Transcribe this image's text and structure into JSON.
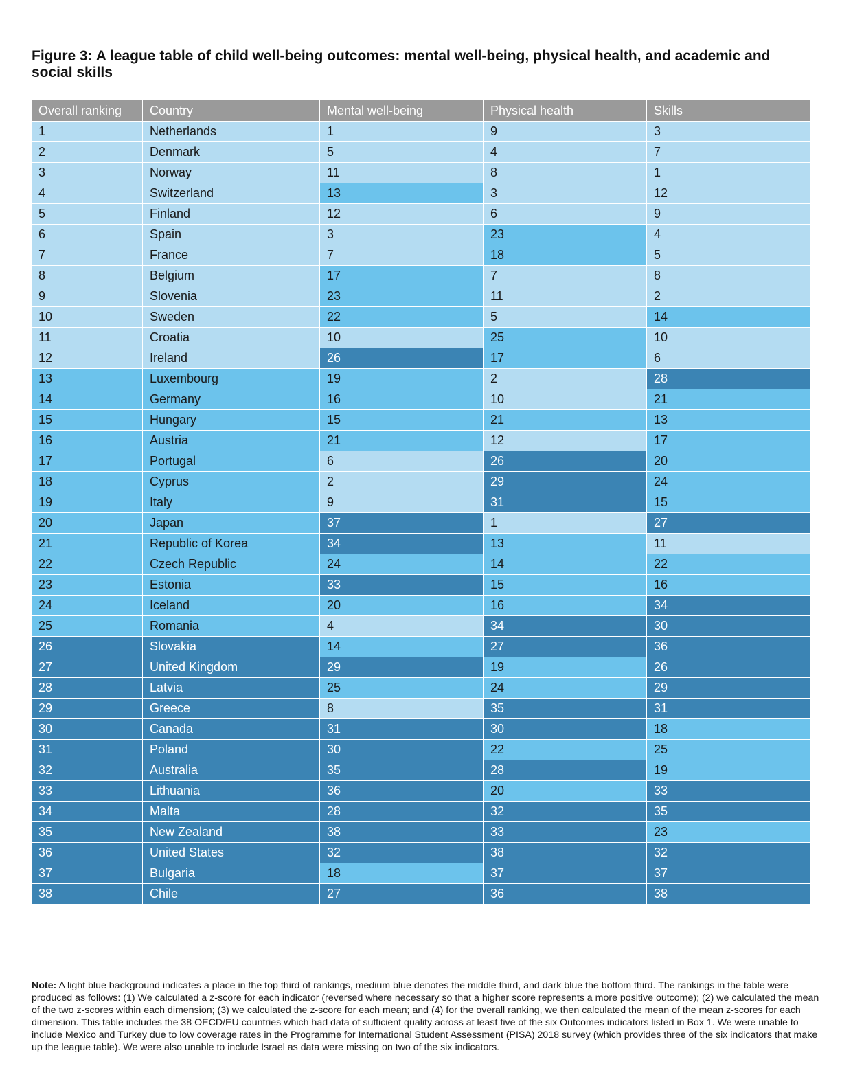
{
  "title": "Figure 3: A league table of child well-being outcomes: mental well-being, physical health, and academic and social skills",
  "columns": [
    "Overall ranking",
    "Country",
    "Mental well-being",
    "Physical health",
    "Skills"
  ],
  "rows": [
    [
      "1",
      "Netherlands",
      "1",
      "9",
      "3"
    ],
    [
      "2",
      "Denmark",
      "5",
      "4",
      "7"
    ],
    [
      "3",
      "Norway",
      "11",
      "8",
      "1"
    ],
    [
      "4",
      "Switzerland",
      "13",
      "3",
      "12"
    ],
    [
      "5",
      "Finland",
      "12",
      "6",
      "9"
    ],
    [
      "6",
      "Spain",
      "3",
      "23",
      "4"
    ],
    [
      "7",
      "France",
      "7",
      "18",
      "5"
    ],
    [
      "8",
      "Belgium",
      "17",
      "7",
      "8"
    ],
    [
      "9",
      "Slovenia",
      "23",
      "11",
      "2"
    ],
    [
      "10",
      "Sweden",
      "22",
      "5",
      "14"
    ],
    [
      "11",
      "Croatia",
      "10",
      "25",
      "10"
    ],
    [
      "12",
      "Ireland",
      "26",
      "17",
      "6"
    ],
    [
      "13",
      "Luxembourg",
      "19",
      "2",
      "28"
    ],
    [
      "14",
      "Germany",
      "16",
      "10",
      "21"
    ],
    [
      "15",
      "Hungary",
      "15",
      "21",
      "13"
    ],
    [
      "16",
      "Austria",
      "21",
      "12",
      "17"
    ],
    [
      "17",
      "Portugal",
      "6",
      "26",
      "20"
    ],
    [
      "18",
      "Cyprus",
      "2",
      "29",
      "24"
    ],
    [
      "19",
      "Italy",
      "9",
      "31",
      "15"
    ],
    [
      "20",
      "Japan",
      "37",
      "1",
      "27"
    ],
    [
      "21",
      "Republic of Korea",
      "34",
      "13",
      "11"
    ],
    [
      "22",
      "Czech Republic",
      "24",
      "14",
      "22"
    ],
    [
      "23",
      "Estonia",
      "33",
      "15",
      "16"
    ],
    [
      "24",
      "Iceland",
      "20",
      "16",
      "34"
    ],
    [
      "25",
      "Romania",
      "4",
      "34",
      "30"
    ],
    [
      "26",
      "Slovakia",
      "14",
      "27",
      "36"
    ],
    [
      "27",
      "United Kingdom",
      "29",
      "19",
      "26"
    ],
    [
      "28",
      "Latvia",
      "25",
      "24",
      "29"
    ],
    [
      "29",
      "Greece",
      "8",
      "35",
      "31"
    ],
    [
      "30",
      "Canada",
      "31",
      "30",
      "18"
    ],
    [
      "31",
      "Poland",
      "30",
      "22",
      "25"
    ],
    [
      "32",
      "Australia",
      "35",
      "28",
      "19"
    ],
    [
      "33",
      "Lithuania",
      "36",
      "20",
      "33"
    ],
    [
      "34",
      "Malta",
      "28",
      "32",
      "35"
    ],
    [
      "35",
      "New Zealand",
      "38",
      "33",
      "23"
    ],
    [
      "36",
      "United States",
      "32",
      "38",
      "32"
    ],
    [
      "37",
      "Bulgaria",
      "18",
      "37",
      "37"
    ],
    [
      "38",
      "Chile",
      "27",
      "36",
      "38"
    ]
  ],
  "tier_colors": {
    "top_third": "#b4dcf2",
    "middle_third": "#6cc3ec",
    "bottom_third": "#3b84b4",
    "header": "#9a9a9a"
  },
  "note": {
    "label": "Note:",
    "text": "A light blue background indicates a place in the top third of rankings, medium blue denotes the middle third, and dark blue the bottom third. The rankings in the table were produced as follows: (1) We calculated a z-score for each indicator (reversed where necessary so that a higher score represents a more positive outcome); (2) we calculated the mean of the two z-scores within each dimension; (3) we calculated the z-score for each mean; and (4) for the overall ranking, we then calculated the mean of the mean z-scores for each dimension. This table includes the 38 OECD/EU countries which had data of sufficient quality across at least five of the six Outcomes indicators listed in Box 1. We were unable to include Mexico and Turkey due to low coverage rates in the Programme for International Student Assessment (PISA) 2018 survey (which provides three of the six indicators that make up the league table). We were also unable to include Israel as data were missing on two of the six indicators."
  }
}
